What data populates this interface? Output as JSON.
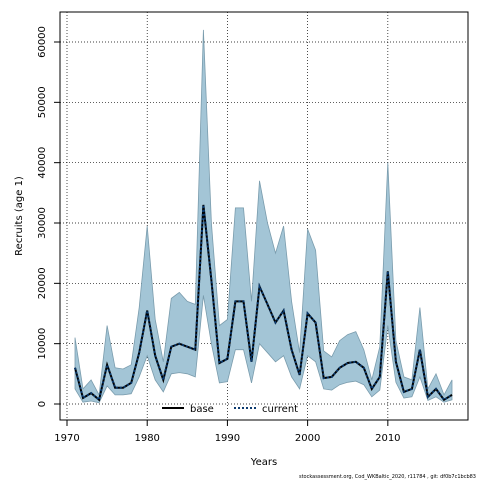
{
  "chart_data": {
    "type": "line",
    "title": "",
    "xlabel": "Years",
    "ylabel": "Recruits (age 1)",
    "xlim": [
      1970,
      2018
    ],
    "ylim": [
      0,
      62000
    ],
    "x_ticks": [
      1970,
      1980,
      1990,
      2000,
      2010
    ],
    "y_ticks": [
      0,
      10000,
      20000,
      30000,
      40000,
      50000,
      60000
    ],
    "grid": true,
    "legend_position": "bottom",
    "credit": "stockassessment.org, Cod_WKBaltic_2020, r11784 , git: df0b7c1bcb83",
    "x": [
      1971,
      1972,
      1973,
      1974,
      1975,
      1976,
      1977,
      1978,
      1979,
      1980,
      1981,
      1982,
      1983,
      1984,
      1985,
      1986,
      1987,
      1988,
      1989,
      1990,
      1991,
      1992,
      1993,
      1994,
      1995,
      1996,
      1997,
      1998,
      1999,
      2000,
      2001,
      2002,
      2003,
      2004,
      2005,
      2006,
      2007,
      2008,
      2009,
      2010,
      2011,
      2012,
      2013,
      2014,
      2015,
      2016,
      2017,
      2018
    ],
    "ci_upper": [
      11000,
      2500,
      4000,
      1500,
      13000,
      6000,
      5800,
      6500,
      16000,
      29500,
      14000,
      7000,
      17500,
      18500,
      17000,
      16500,
      62000,
      30000,
      13000,
      14000,
      32500,
      32500,
      17000,
      37000,
      30000,
      25000,
      29500,
      17000,
      8500,
      29000,
      25500,
      8800,
      7800,
      10500,
      11500,
      12000,
      9000,
      4000,
      9500,
      40000,
      10500,
      4500,
      4000,
      16000,
      2500,
      5000,
      1500,
      4000
    ],
    "base": [
      6000,
      1000,
      1800,
      700,
      6500,
      2700,
      2700,
      3500,
      8500,
      15500,
      8000,
      4000,
      9500,
      10000,
      9500,
      9000,
      33000,
      20500,
      6800,
      7500,
      17000,
      17000,
      7000,
      19500,
      16500,
      13500,
      15500,
      9000,
      4800,
      15000,
      13500,
      4300,
      4500,
      6000,
      6800,
      7000,
      6000,
      2500,
      4500,
      22000,
      7000,
      2000,
      2500,
      9000,
      1200,
      2500,
      700,
      1500
    ],
    "ci_lower": [
      2500,
      300,
      500,
      200,
      3000,
      1500,
      1500,
      1700,
      4500,
      8000,
      4000,
      2000,
      5000,
      5200,
      5000,
      4500,
      18000,
      10000,
      3500,
      3700,
      9000,
      9000,
      3500,
      10000,
      8500,
      7000,
      8000,
      4500,
      2500,
      8000,
      7000,
      2500,
      2300,
      3200,
      3600,
      3800,
      3200,
      1200,
      2300,
      13000,
      3600,
      1000,
      1200,
      4500,
      600,
      1200,
      300,
      700
    ],
    "series": [
      {
        "name": "base",
        "values": [
          6000,
          1000,
          1800,
          700,
          6500,
          2700,
          2700,
          3500,
          8500,
          15500,
          8000,
          4000,
          9500,
          10000,
          9500,
          9000,
          33000,
          20500,
          6800,
          7500,
          17000,
          17000,
          7000,
          19500,
          16500,
          13500,
          15500,
          9000,
          4800,
          15000,
          13500,
          4300,
          4500,
          6000,
          6800,
          7000,
          6000,
          2500,
          4500,
          22000,
          7000,
          2000,
          2500,
          9000,
          1200,
          2500,
          700,
          1500
        ]
      },
      {
        "name": "current",
        "values": [
          6000,
          1000,
          1800,
          700,
          6500,
          2700,
          2700,
          3500,
          8500,
          15500,
          8000,
          4000,
          9500,
          10000,
          9500,
          9000,
          33000,
          20500,
          6800,
          7500,
          17000,
          17000,
          7000,
          19500,
          16500,
          13500,
          15500,
          9000,
          4800,
          15000,
          13500,
          4300,
          4500,
          6000,
          6800,
          7000,
          6000,
          2500,
          4500,
          22000,
          7000,
          2000,
          2500,
          9000,
          1200,
          2500,
          700,
          1500
        ]
      }
    ],
    "colors": {
      "band_fill": "#a3c5d6",
      "band_stroke": "#7a9cad",
      "base_line": "#000000",
      "current_line": "#0b3a6e",
      "grid": "#000000"
    }
  }
}
